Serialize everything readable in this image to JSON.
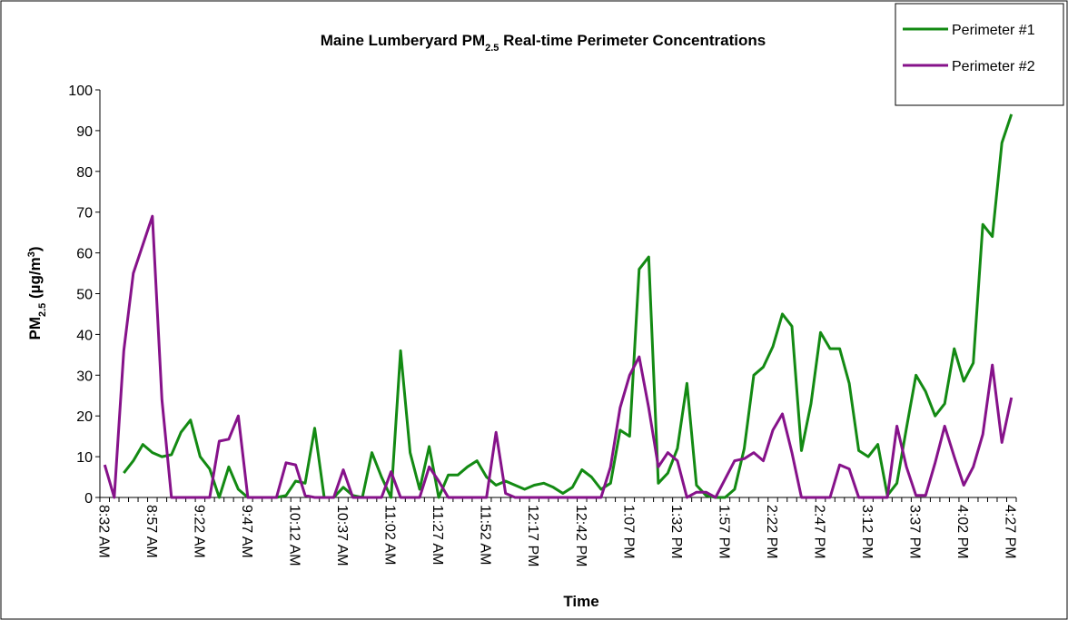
{
  "chart_data": {
    "type": "line",
    "title": [
      "Maine Lumberyard PM",
      "2.5",
      " Real-time Perimeter Concentrations"
    ],
    "x_label": "Time",
    "y_label": [
      "PM",
      "2.5",
      " (µg/m",
      "3",
      ")"
    ],
    "categories": [
      "8:32 AM",
      null,
      null,
      null,
      null,
      "8:57 AM",
      null,
      null,
      null,
      null,
      "9:22 AM",
      null,
      null,
      null,
      null,
      "9:47 AM",
      null,
      null,
      null,
      null,
      "10:12 AM",
      null,
      null,
      null,
      null,
      "10:37 AM",
      null,
      null,
      null,
      null,
      "11:02 AM",
      null,
      null,
      null,
      null,
      "11:27 AM",
      null,
      null,
      null,
      null,
      "11:52 AM",
      null,
      null,
      null,
      null,
      "12:17 PM",
      null,
      null,
      null,
      null,
      "12:42 PM",
      null,
      null,
      null,
      null,
      "1:07 PM",
      null,
      null,
      null,
      null,
      "1:32 PM",
      null,
      null,
      null,
      null,
      "1:57 PM",
      null,
      null,
      null,
      null,
      "2:22 PM",
      null,
      null,
      null,
      null,
      "2:47 PM",
      null,
      null,
      null,
      null,
      "3:12 PM",
      null,
      null,
      null,
      null,
      "3:37 PM",
      null,
      null,
      null,
      null,
      "4:02 PM",
      null,
      null,
      null,
      null,
      "4:27 PM"
    ],
    "series": [
      {
        "name": "Perimeter #1",
        "color": "#138a13",
        "values": [
          null,
          null,
          6,
          9,
          13,
          11,
          10,
          10.5,
          16,
          19,
          10,
          7,
          0,
          7.5,
          2,
          0,
          0,
          0,
          0,
          0.5,
          4,
          3.5,
          17,
          0,
          0,
          2.5,
          0.5,
          0,
          11,
          5,
          0,
          36,
          11,
          2,
          12.5,
          0,
          5.5,
          5.5,
          7.5,
          9,
          5,
          3,
          4,
          3,
          2,
          3,
          3.5,
          2.5,
          1,
          2.5,
          6.8,
          5,
          2,
          3.5,
          16.5,
          15,
          56,
          59,
          3.5,
          6,
          12,
          28,
          3,
          0.5,
          0,
          0,
          2,
          12,
          30,
          32,
          37,
          45,
          42,
          11.5,
          23,
          40.5,
          36.5,
          36.5,
          28,
          11.5,
          10,
          13,
          0.5,
          3.5,
          17,
          30,
          26,
          20,
          23,
          36.5,
          28.5,
          33,
          67,
          64,
          87,
          94
        ]
      },
      {
        "name": "Perimeter #2",
        "color": "#86128a",
        "values": [
          8,
          0,
          36,
          55,
          62,
          69,
          24,
          0,
          0,
          0,
          0,
          0,
          13.8,
          14.3,
          20,
          0,
          0,
          0,
          0,
          8.5,
          8,
          0.5,
          0,
          0,
          0,
          6.8,
          0,
          0,
          0,
          0,
          6.3,
          0,
          0,
          0,
          7.5,
          4,
          0,
          0,
          0,
          0,
          0,
          16,
          1,
          0,
          0,
          0,
          0,
          0,
          0,
          0,
          0,
          0,
          0,
          7.5,
          22,
          30,
          34.5,
          22,
          7.5,
          11,
          9,
          0,
          1.3,
          1.3,
          0,
          4.5,
          9,
          9.5,
          11,
          9,
          16.5,
          20.5,
          11,
          0,
          0,
          0,
          0,
          8,
          7,
          0,
          0,
          0,
          0,
          17.5,
          7.5,
          0.5,
          0.5,
          8.5,
          17.5,
          10,
          3,
          7.5,
          15.5,
          32.5,
          13.5,
          24.5
        ]
      }
    ],
    "ylim": [
      0,
      100
    ],
    "yticks": [
      0,
      10,
      20,
      30,
      40,
      50,
      60,
      70,
      80,
      90,
      100
    ],
    "grid": false,
    "legend": "top-right"
  }
}
